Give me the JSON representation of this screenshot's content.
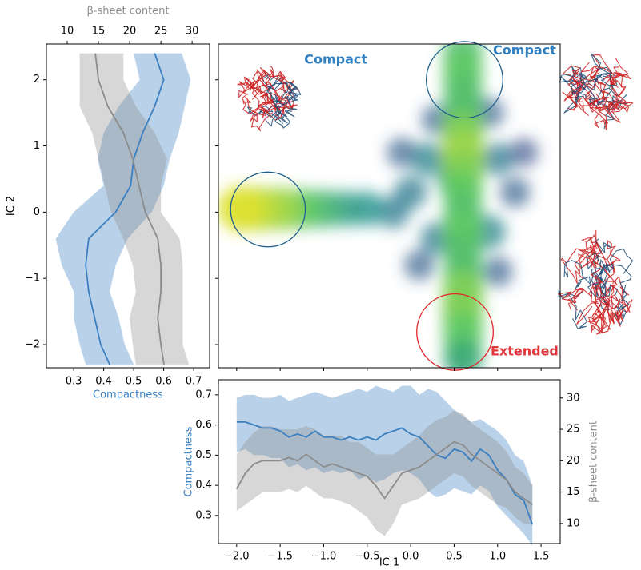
{
  "chart_data": [
    {
      "type": "profile",
      "ylabel": "IC 2",
      "xlim": [
        0.209,
        0.753
      ],
      "xticks": [
        0.3,
        0.4,
        0.5,
        0.6,
        0.7
      ],
      "x2lim": [
        6.67,
        32.8
      ],
      "x2ticks": [
        10,
        15,
        20,
        25,
        30
      ],
      "ylim": [
        -2.35,
        2.54
      ],
      "yticks": [
        {
          "value": -2,
          "label": "−2"
        },
        {
          "value": -1,
          "label": "−1"
        },
        0,
        1,
        2
      ],
      "y": [
        2.4,
        2.0,
        1.6,
        1.2,
        0.8,
        0.4,
        0.0,
        -0.4,
        -0.8,
        -1.2,
        -1.6,
        -2.0,
        -2.3
      ],
      "series": [
        {
          "name": "Compactness",
          "color": "#3a7fbf",
          "values": [
            0.57,
            0.6,
            0.57,
            0.53,
            0.5,
            0.49,
            0.44,
            0.35,
            0.34,
            0.35,
            0.37,
            0.39,
            0.42
          ],
          "lower": [
            0.5,
            0.52,
            0.45,
            0.4,
            0.38,
            0.4,
            0.3,
            0.24,
            0.26,
            0.3,
            0.3,
            0.32,
            0.34
          ],
          "upper": [
            0.66,
            0.69,
            0.67,
            0.65,
            0.62,
            0.6,
            0.56,
            0.48,
            0.44,
            0.42,
            0.45,
            0.47,
            0.5
          ]
        },
        {
          "name": "β-sheet content",
          "color": "#8c8c8c",
          "axis": "x2",
          "values": [
            14.5,
            15,
            16.5,
            19,
            20.5,
            21.5,
            22.5,
            24.5,
            25,
            25,
            24.5,
            25,
            25.5
          ],
          "lower": [
            12,
            12,
            12,
            14,
            15,
            16,
            17,
            19,
            20.5,
            21,
            20,
            20.5,
            21
          ],
          "upper": [
            19,
            19,
            21,
            24,
            26,
            25,
            25,
            28,
            28.5,
            28.5,
            28.5,
            28.5,
            29.5
          ]
        }
      ]
    },
    {
      "type": "density",
      "xlim": [
        -2.21,
        1.72
      ],
      "ylim": [
        -2.35,
        2.54
      ],
      "xticks": [
        -2,
        -1.5,
        -1,
        -0.5,
        0,
        0.5,
        1,
        1.5
      ],
      "yticks": [
        -2,
        -1,
        0,
        1,
        2
      ],
      "density": {
        "x": [
          0.2,
          0.0,
          1.0,
          1.2,
          0.3,
          0.9,
          -0.2,
          0.3,
          0.9,
          -0.1,
          1.3,
          0.1,
          1.0,
          0.5,
          -0.5,
          -0.75,
          -1.0,
          -1.25,
          -1.5,
          -1.75,
          -1.95,
          0.6,
          0.6,
          0.6,
          0.6,
          0.6,
          0.6,
          0.6,
          0.6,
          0.6,
          0.6,
          0.6,
          0.6,
          0.6,
          0.6,
          0.6,
          0.6,
          0.6
        ],
        "y": [
          0.8,
          0.3,
          0.8,
          0.3,
          -0.4,
          -0.3,
          0.0,
          1.4,
          1.5,
          0.9,
          0.9,
          -0.8,
          -0.9,
          0.5,
          0.05,
          0.05,
          0.05,
          0.05,
          0.05,
          0.05,
          0.05,
          2.4,
          2.1,
          1.8,
          1.5,
          1.2,
          0.9,
          0.6,
          0.3,
          0.0,
          -0.3,
          -0.6,
          -0.9,
          -1.2,
          -1.5,
          -1.8,
          -2.1,
          -2.25
        ],
        "z": [
          0.45,
          0.4,
          0.4,
          0.3,
          0.4,
          0.45,
          0.4,
          0.3,
          0.3,
          0.3,
          0.25,
          0.3,
          0.3,
          0.5,
          0.5,
          0.55,
          0.65,
          0.75,
          0.85,
          0.9,
          0.95,
          0.7,
          0.75,
          0.7,
          0.7,
          0.8,
          0.85,
          0.8,
          0.75,
          0.7,
          0.75,
          0.7,
          0.7,
          0.8,
          0.8,
          0.75,
          0.7,
          0.6
        ]
      },
      "circles": [
        {
          "x": -1.64,
          "y": 0.04,
          "r": 0.43,
          "color": "#1f5f8b"
        },
        {
          "x": 0.62,
          "y": 2.0,
          "r": 0.44,
          "color": "#1f5f8b"
        },
        {
          "x": 0.51,
          "y": -1.81,
          "r": 0.44,
          "color": "#e0282c"
        }
      ],
      "annotations": [
        {
          "text": "Compact",
          "x": -0.86,
          "y": 2.3,
          "color": "#2f7fc1"
        },
        {
          "text": "Compact",
          "x": 1.31,
          "y": 2.44,
          "color": "#2f7fc1"
        },
        {
          "text": "Extended",
          "x": 1.31,
          "y": -2.11,
          "color": "#e0383c"
        }
      ]
    },
    {
      "type": "line_band",
      "xlabel": "IC 1",
      "xlim": [
        -2.21,
        1.72
      ],
      "xticks": [
        {
          "value": -2,
          "label": "−2.0"
        },
        {
          "value": -1.5,
          "label": "−1.5"
        },
        {
          "value": -1,
          "label": "−1.0"
        },
        {
          "value": -0.5,
          "label": "−0.5"
        },
        {
          "value": 0,
          "label": "0.0"
        },
        {
          "value": 0.5,
          "label": "0.5"
        },
        {
          "value": 1,
          "label": "1.0"
        },
        {
          "value": 1.5,
          "label": "1.5"
        }
      ],
      "ylim": [
        0.207,
        0.75
      ],
      "yticks": [
        0.3,
        0.4,
        0.5,
        0.6,
        0.7
      ],
      "y2lim": [
        6.8,
        32.9
      ],
      "y2ticks": [
        10,
        15,
        20,
        25,
        30
      ],
      "x": [
        -2.0,
        -1.9,
        -1.8,
        -1.7,
        -1.6,
        -1.5,
        -1.4,
        -1.3,
        -1.2,
        -1.1,
        -1.0,
        -0.9,
        -0.8,
        -0.7,
        -0.6,
        -0.5,
        -0.4,
        -0.3,
        -0.2,
        -0.1,
        0.0,
        0.1,
        0.2,
        0.3,
        0.4,
        0.5,
        0.6,
        0.7,
        0.8,
        0.9,
        1.0,
        1.1,
        1.2,
        1.3,
        1.4
      ],
      "series": [
        {
          "name": "Compactness",
          "color": "#3a7fbf",
          "values": [
            0.61,
            0.61,
            0.6,
            0.59,
            0.59,
            0.58,
            0.56,
            0.57,
            0.56,
            0.58,
            0.56,
            0.56,
            0.55,
            0.56,
            0.55,
            0.56,
            0.55,
            0.57,
            0.58,
            0.59,
            0.57,
            0.56,
            0.53,
            0.5,
            0.49,
            0.52,
            0.51,
            0.48,
            0.52,
            0.5,
            0.45,
            0.42,
            0.37,
            0.35,
            0.27
          ],
          "upper": [
            0.69,
            0.7,
            0.7,
            0.69,
            0.69,
            0.7,
            0.68,
            0.69,
            0.7,
            0.71,
            0.7,
            0.69,
            0.7,
            0.71,
            0.72,
            0.71,
            0.73,
            0.72,
            0.71,
            0.73,
            0.73,
            0.7,
            0.72,
            0.71,
            0.68,
            0.65,
            0.63,
            0.61,
            0.62,
            0.6,
            0.58,
            0.55,
            0.5,
            0.48,
            0.4
          ],
          "lower": [
            0.51,
            0.52,
            0.5,
            0.5,
            0.49,
            0.49,
            0.46,
            0.47,
            0.45,
            0.46,
            0.44,
            0.45,
            0.44,
            0.45,
            0.42,
            0.43,
            0.41,
            0.42,
            0.44,
            0.45,
            0.44,
            0.42,
            0.38,
            0.36,
            0.37,
            0.39,
            0.38,
            0.37,
            0.4,
            0.38,
            0.33,
            0.3,
            0.27,
            0.24,
            0.2
          ]
        },
        {
          "name": "β-sheet content",
          "color": "#8c8c8c",
          "axis": "y2",
          "values": [
            15.5,
            18,
            19.5,
            20,
            20,
            20,
            20.5,
            20,
            21,
            20,
            19,
            19.5,
            19,
            18.5,
            18,
            17.5,
            16,
            14,
            16,
            18,
            18.5,
            19,
            20,
            21,
            22,
            23,
            22.5,
            21,
            20,
            19,
            18,
            17,
            15,
            14,
            13
          ],
          "upper": [
            21,
            23,
            24.5,
            25.5,
            25.5,
            25,
            25,
            25,
            25.5,
            25,
            24,
            24,
            24,
            23,
            23,
            22,
            21,
            21,
            21,
            22,
            23,
            24,
            25.5,
            26.5,
            27,
            28,
            27.5,
            26,
            25,
            24,
            23,
            21.5,
            19,
            18,
            16
          ],
          "lower": [
            12,
            13,
            14,
            15,
            15,
            15,
            15.5,
            15,
            16,
            15,
            14,
            14,
            13.5,
            13,
            12,
            11,
            9,
            8,
            10,
            13,
            13.5,
            14,
            15,
            16,
            17,
            18,
            17.5,
            16,
            15,
            14,
            13,
            12.5,
            11,
            10,
            10
          ]
        }
      ]
    }
  ]
}
